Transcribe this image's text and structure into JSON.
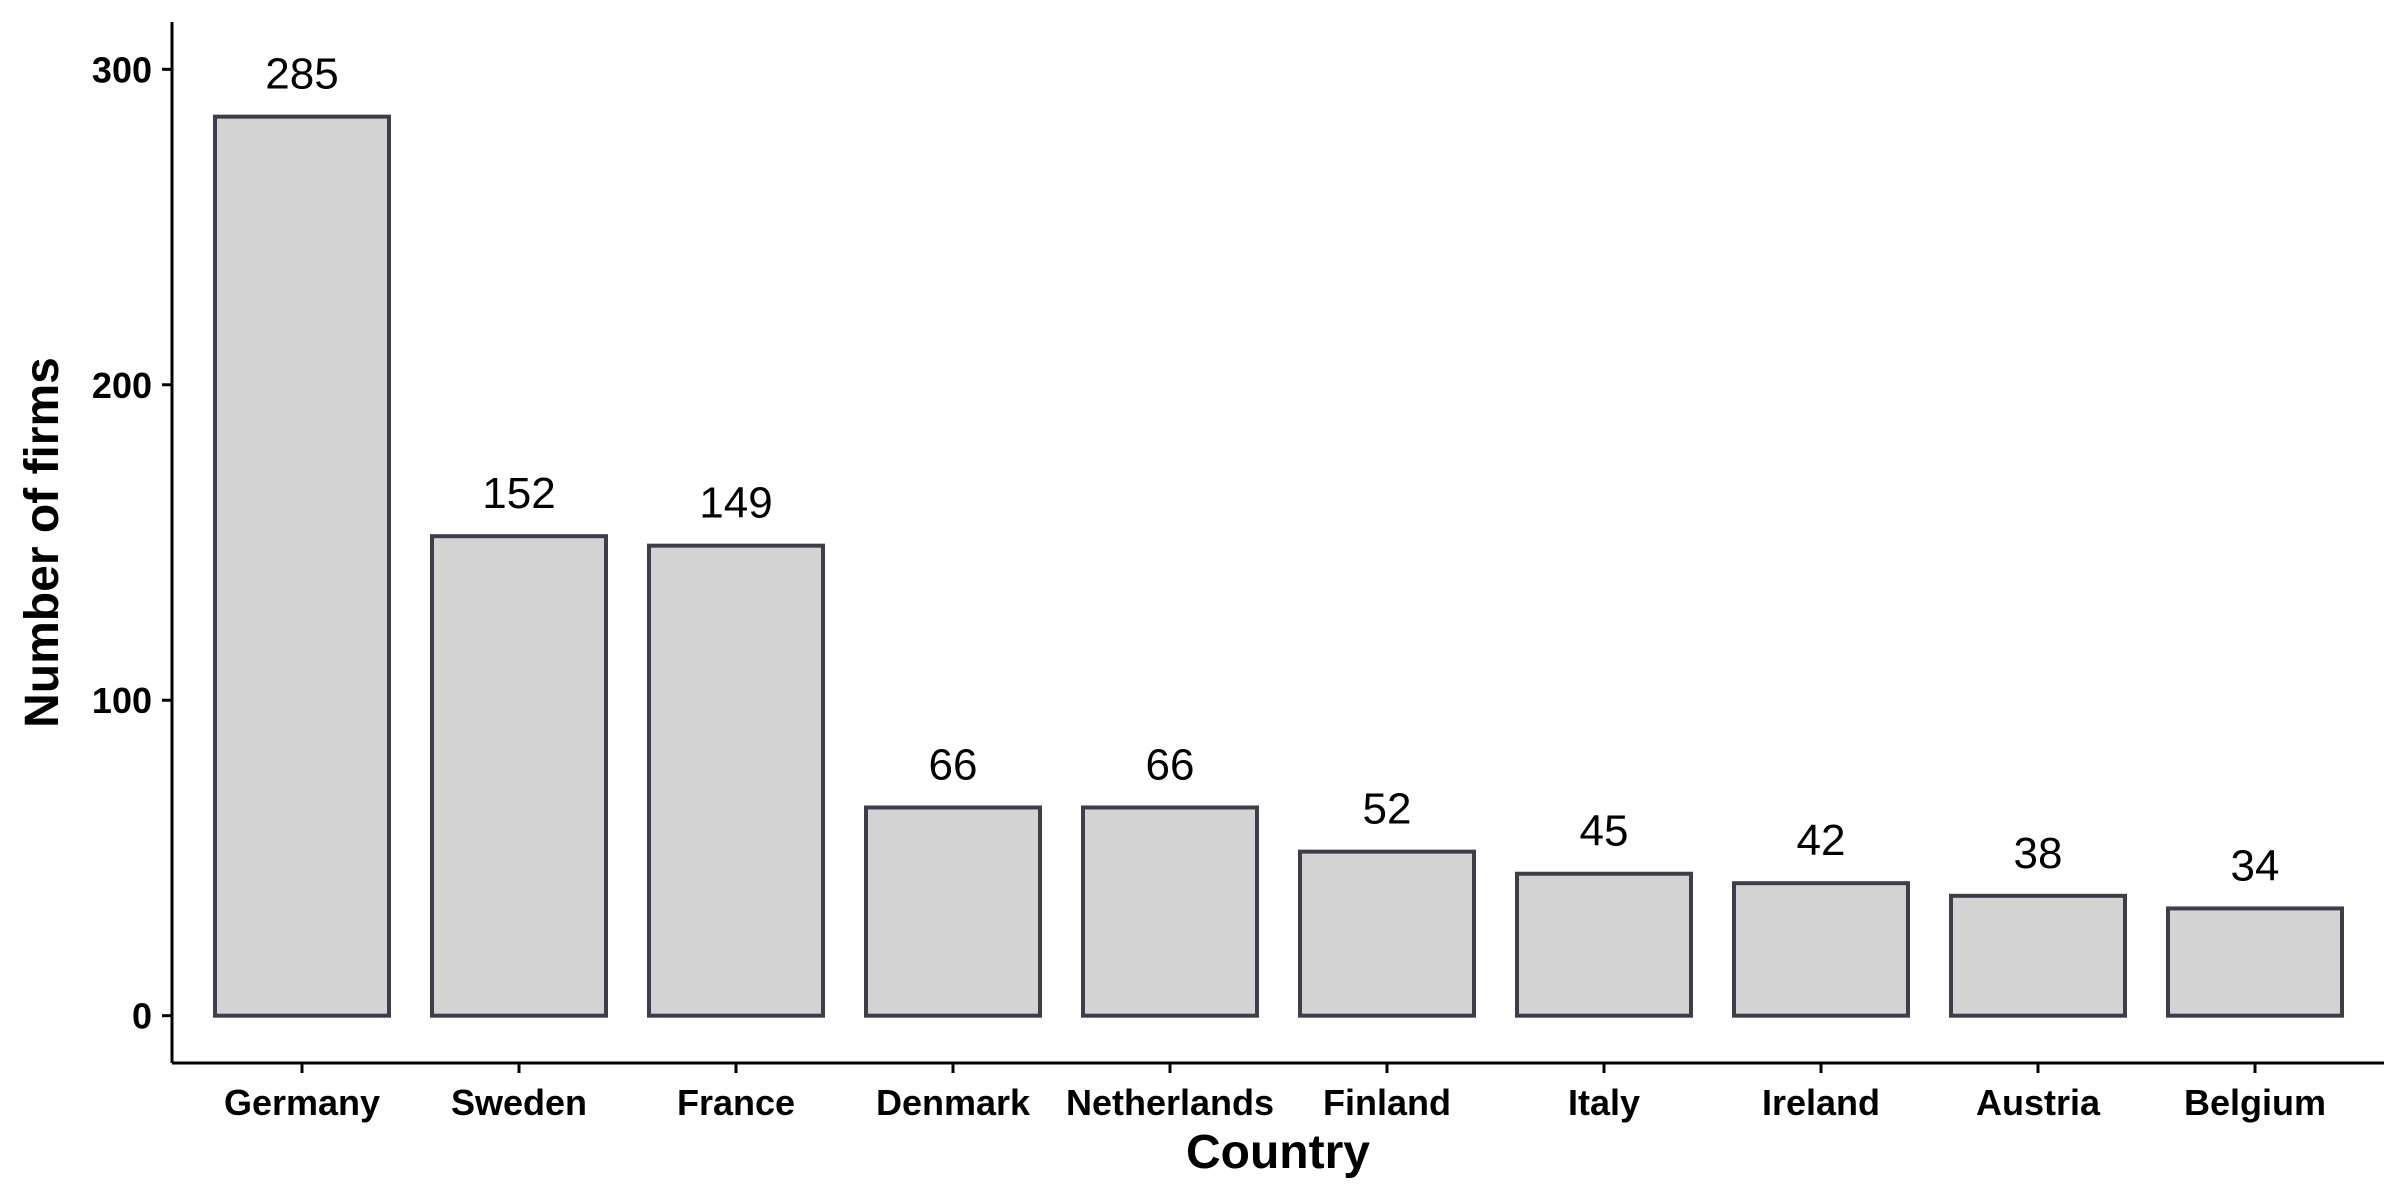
{
  "chart_data": {
    "type": "bar",
    "title": "",
    "xlabel": "Country",
    "ylabel": "Number of firms",
    "categories": [
      "Germany",
      "Sweden",
      "France",
      "Denmark",
      "Netherlands",
      "Finland",
      "Italy",
      "Ireland",
      "Austria",
      "Belgium"
    ],
    "values": [
      285,
      152,
      149,
      66,
      66,
      52,
      45,
      42,
      38,
      34
    ],
    "yticks": [
      0,
      100,
      200,
      300
    ],
    "ylim": [
      -15,
      315
    ],
    "grid": false,
    "legend": "none",
    "colors": {
      "bar_fill": "#d3d3d3",
      "bar_stroke": "#3e3e4a",
      "axis": "#000000"
    }
  }
}
